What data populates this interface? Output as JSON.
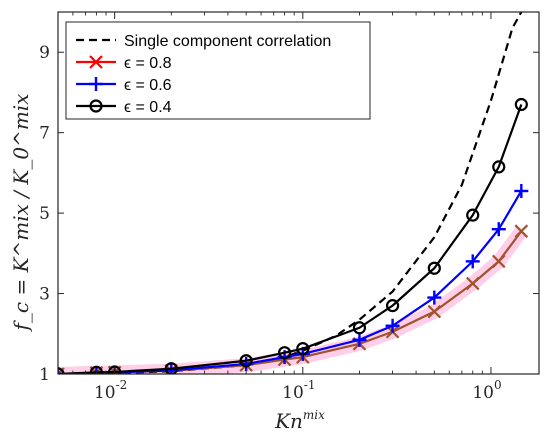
{
  "chart_data": {
    "type": "line",
    "xscale": "log",
    "xlim": [
      0.005,
      1.8
    ],
    "ylim": [
      1,
      10
    ],
    "grid": false,
    "legend_position": "top-left",
    "xlabel": "Kn",
    "xlabel_sup": "mix",
    "ylabel": "f_c = K^mix / K_0^mix",
    "x_ticks": [
      {
        "base": "10",
        "exp": "-2",
        "value": 0.01
      },
      {
        "base": "10",
        "exp": "-1",
        "value": 0.1
      },
      {
        "base": "10",
        "exp": "0",
        "value": 1
      }
    ],
    "y_ticks": [
      1,
      3,
      5,
      7,
      9
    ],
    "series": [
      {
        "name": "Single component correlation",
        "style": "dashed",
        "color": "#000000",
        "marker": "none",
        "x": [
          0.005,
          0.01,
          0.02,
          0.05,
          0.08,
          0.1,
          0.15,
          0.2,
          0.3,
          0.5,
          0.7,
          1.0,
          1.3,
          1.45
        ],
        "y": [
          1.0,
          1.02,
          1.07,
          1.22,
          1.42,
          1.58,
          1.95,
          2.35,
          3.05,
          4.4,
          5.7,
          7.8,
          9.6,
          10.0
        ]
      },
      {
        "name": "ϵ = 0.8",
        "style": "solid",
        "color": "#ff0000",
        "marker": "x",
        "x": [
          0.005,
          0.008,
          0.01,
          0.02,
          0.05,
          0.08,
          0.1,
          0.2,
          0.3,
          0.5,
          0.8,
          1.1,
          1.45
        ],
        "y": [
          1.0,
          1.03,
          1.04,
          1.08,
          1.22,
          1.36,
          1.42,
          1.75,
          2.05,
          2.55,
          3.25,
          3.8,
          4.55
        ]
      },
      {
        "name": "ϵ = 0.6",
        "style": "solid",
        "color": "#0000ff",
        "marker": "+",
        "x": [
          0.005,
          0.008,
          0.01,
          0.02,
          0.05,
          0.08,
          0.1,
          0.2,
          0.3,
          0.5,
          0.8,
          1.1,
          1.45
        ],
        "y": [
          1.0,
          1.03,
          1.04,
          1.09,
          1.25,
          1.42,
          1.5,
          1.85,
          2.2,
          2.9,
          3.8,
          4.6,
          5.55
        ]
      },
      {
        "name": "ϵ = 0.4",
        "style": "solid",
        "color": "#000000",
        "marker": "o",
        "x": [
          0.005,
          0.008,
          0.01,
          0.02,
          0.05,
          0.08,
          0.1,
          0.2,
          0.3,
          0.5,
          0.8,
          1.1,
          1.45
        ],
        "y": [
          1.0,
          1.04,
          1.05,
          1.13,
          1.33,
          1.53,
          1.63,
          2.15,
          2.7,
          3.63,
          4.95,
          6.15,
          7.7
        ]
      }
    ],
    "overlap_series_color": "#a0522d"
  }
}
